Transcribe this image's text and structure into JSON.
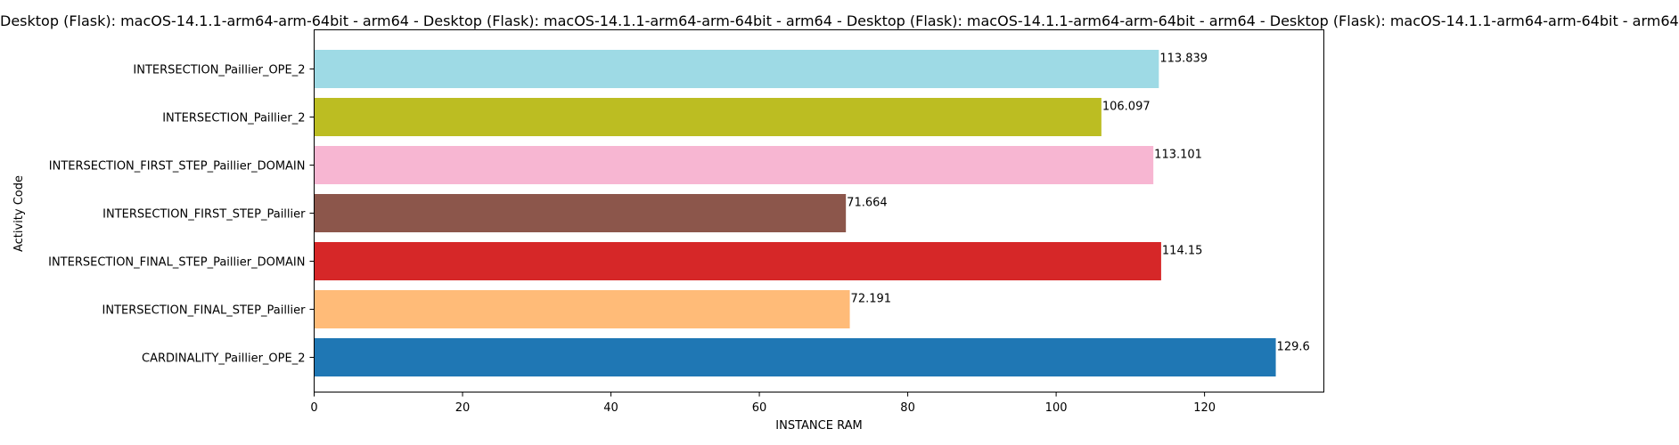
{
  "chart_data": {
    "type": "bar",
    "orientation": "horizontal",
    "title": "Desktop (Flask): macOS-14.1.1-arm64-arm-64bit - arm64 - Desktop (Flask): macOS-14.1.1-arm64-arm-64bit - arm64 - Desktop (Flask): macOS-14.1.1-arm64-arm-64bit - arm64 - Desktop (Flask): macOS-14.1.1-arm64-arm-64bit - arm64",
    "xlabel": "INSTANCE RAM",
    "ylabel": "Activity Code",
    "xlim": [
      0,
      136.08
    ],
    "xticks": [
      0,
      20,
      40,
      60,
      80,
      100,
      120
    ],
    "grid": false,
    "categories": [
      "CARDINALITY_Paillier_OPE_2",
      "INTERSECTION_FINAL_STEP_Paillier",
      "INTERSECTION_FINAL_STEP_Paillier_DOMAIN",
      "INTERSECTION_FIRST_STEP_Paillier",
      "INTERSECTION_FIRST_STEP_Paillier_DOMAIN",
      "INTERSECTION_Paillier_2",
      "INTERSECTION_Paillier_OPE_2"
    ],
    "values": [
      129.6,
      72.191,
      114.15,
      71.664,
      113.101,
      106.097,
      113.839
    ],
    "value_labels": [
      "129.6",
      "72.191",
      "114.15",
      "71.664",
      "113.101",
      "106.097",
      "113.839"
    ],
    "colors": [
      "#1f77b4",
      "#ffbb78",
      "#d62728",
      "#8c564b",
      "#f7b6d2",
      "#bcbd22",
      "#9edae5"
    ]
  }
}
